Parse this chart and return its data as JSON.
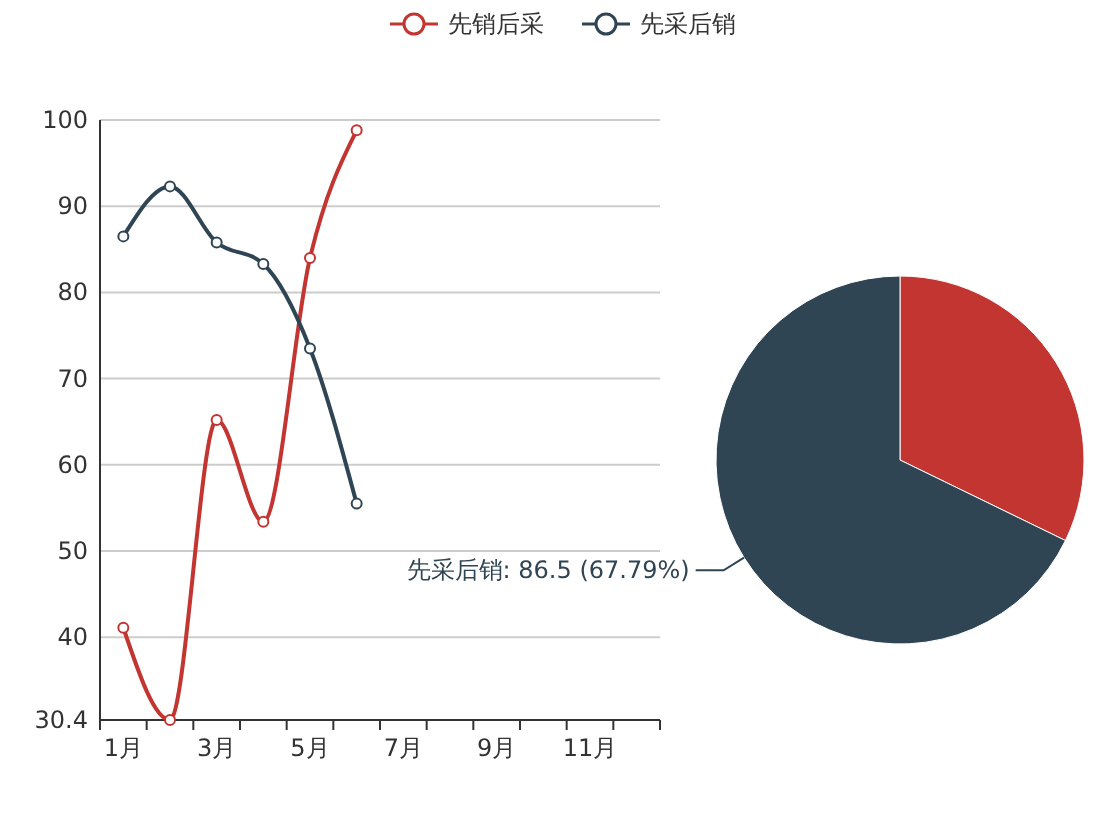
{
  "chart_data": [
    {
      "type": "line",
      "categories": [
        "1月",
        null,
        "3月",
        null,
        "5月",
        null,
        "7月",
        null,
        "9月",
        null,
        "11月",
        null
      ],
      "ylim": [
        30.4,
        100
      ],
      "yticks": [
        30.4,
        40,
        50,
        60,
        70,
        80,
        90,
        100
      ],
      "grid": "y",
      "marker": "circle",
      "series": [
        {
          "color": "#c23531",
          "values": [
            41.1,
            30.4,
            65.2,
            53.4,
            84.0,
            98.8,
            null,
            null,
            null,
            null,
            null,
            null
          ]
        },
        {
          "color": "#2f4554",
          "values": [
            86.5,
            92.3,
            85.8,
            83.3,
            73.5,
            55.5,
            null,
            null,
            null,
            null,
            null,
            null
          ]
        }
      ]
    },
    {
      "type": "pie",
      "categories": [
        "先销后采",
        "先采后销"
      ],
      "values": [
        41.1,
        86.5
      ],
      "colors": [
        "#c23531",
        "#2f4554"
      ],
      "legend": "top",
      "value_labels": [
        null,
        "先采后销: 86.5 (67.79%)"
      ]
    }
  ]
}
